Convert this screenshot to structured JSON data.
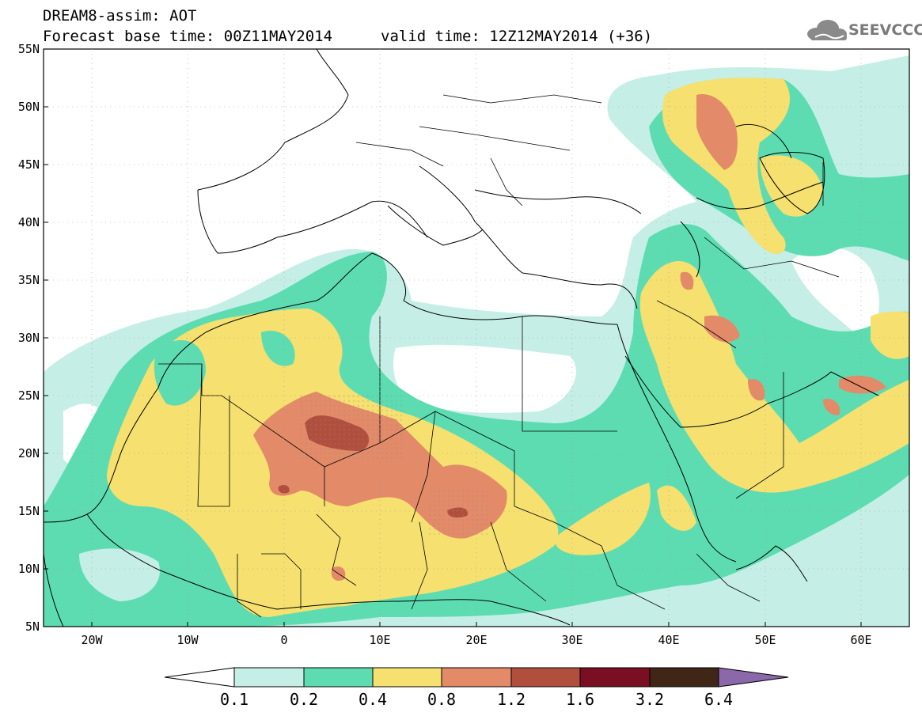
{
  "header": {
    "line1": "DREAM8-assim: AOT",
    "line2": "Forecast base time: 00Z11MAY2014",
    "valid": "valid time: 12Z12MAY2014 (+36)",
    "logo": "SEEVCCC"
  },
  "map": {
    "lat_labels": [
      "55N",
      "50N",
      "45N",
      "40N",
      "35N",
      "30N",
      "25N",
      "20N",
      "15N",
      "10N",
      "5N"
    ],
    "lon_labels": [
      "20W",
      "10W",
      "0",
      "10E",
      "20E",
      "30E",
      "40E",
      "50E",
      "60E"
    ],
    "lon_range": [
      -25,
      65
    ],
    "lat_range": [
      5,
      55
    ]
  },
  "legend": {
    "labels": [
      "0.1",
      "0.2",
      "0.4",
      "0.8",
      "1.2",
      "1.6",
      "3.2",
      "6.4"
    ],
    "colors": [
      "#c5efe6",
      "#5ddcb2",
      "#f5e070",
      "#e38a68",
      "#b14f3f",
      "#7a0e23",
      "#3f2616",
      "#8a68aa"
    ]
  },
  "colors": {
    "c01": "#c5efe6",
    "c02": "#5ddcb2",
    "c04": "#f5e070",
    "c08": "#e38a68",
    "c12": "#b14f3f"
  }
}
